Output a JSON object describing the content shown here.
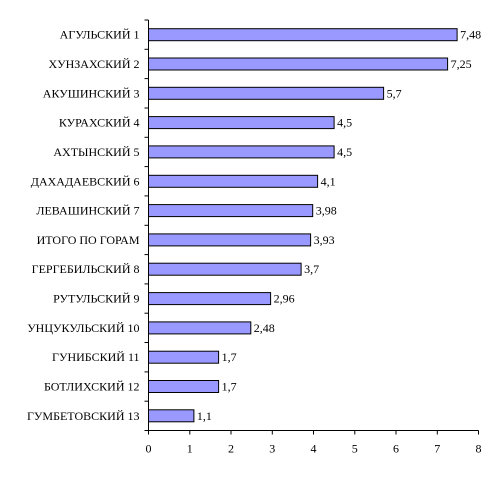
{
  "chart_data": {
    "type": "bar",
    "orientation": "horizontal",
    "categories": [
      "АГУЛЬСКИЙ 1",
      "ХУНЗАХСКИЙ 2",
      "АКУШИНСКИЙ 3",
      "КУРАХСКИЙ 4",
      "АХТЫНСКИЙ 5",
      "ДАХАДАЕВСКИЙ 6",
      "ЛЕВАШИНСКИЙ 7",
      "ИТОГО ПО ГОРАМ",
      "ГЕРГЕБИЛЬСКИЙ 8",
      "РУТУЛЬСКИЙ 9",
      "УНЦУКУЛЬСКИЙ 10",
      "ГУНИБСКИЙ 11",
      "БОТЛИХСКИЙ 12",
      "ГУМБЕТОВСКИЙ 13"
    ],
    "values": [
      7.48,
      7.25,
      5.7,
      4.5,
      4.5,
      4.1,
      3.98,
      3.93,
      3.7,
      2.96,
      2.48,
      1.7,
      1.7,
      1.1
    ],
    "value_labels": [
      "7,48",
      "7,25",
      "5,7",
      "4,5",
      "4,5",
      "4,1",
      "3,98",
      "3,93",
      "3,7",
      "2,96",
      "2,48",
      "1,7",
      "1,7",
      "1,1"
    ],
    "xlim": [
      0,
      8
    ],
    "xticks": [
      "0",
      "1",
      "2",
      "3",
      "4",
      "5",
      "6",
      "7",
      "8"
    ],
    "bar_color": "#9999ff",
    "grid": false,
    "legend": "none"
  }
}
